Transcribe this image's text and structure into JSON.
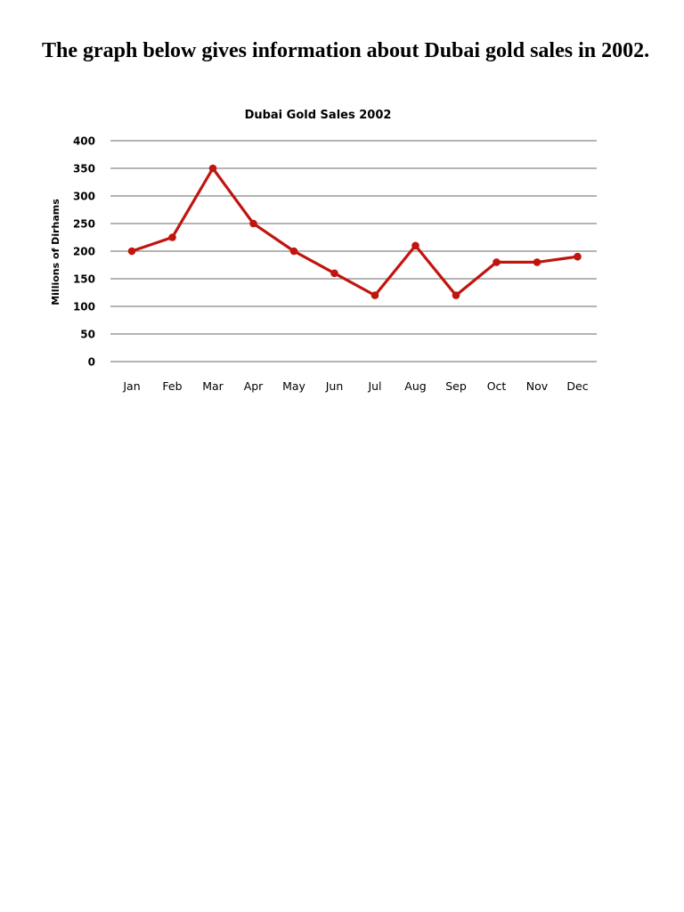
{
  "page": {
    "heading": "The graph below gives information about Dubai gold sales in 2002."
  },
  "colors": {
    "line": "#c0150f",
    "grid": "#868686"
  },
  "chart_data": {
    "type": "line",
    "title": "Dubai Gold Sales 2002",
    "xlabel": "",
    "ylabel": "Millions of Dirhams",
    "categories": [
      "Jan",
      "Feb",
      "Mar",
      "Apr",
      "May",
      "Jun",
      "Jul",
      "Aug",
      "Sep",
      "Oct",
      "Nov",
      "Dec"
    ],
    "values": [
      200,
      225,
      350,
      250,
      200,
      160,
      120,
      210,
      120,
      180,
      180,
      190
    ],
    "ylim": [
      0,
      400
    ],
    "yticks": [
      0,
      50,
      100,
      150,
      200,
      250,
      300,
      350,
      400
    ],
    "grid": true,
    "legend": "none",
    "markers": true
  }
}
